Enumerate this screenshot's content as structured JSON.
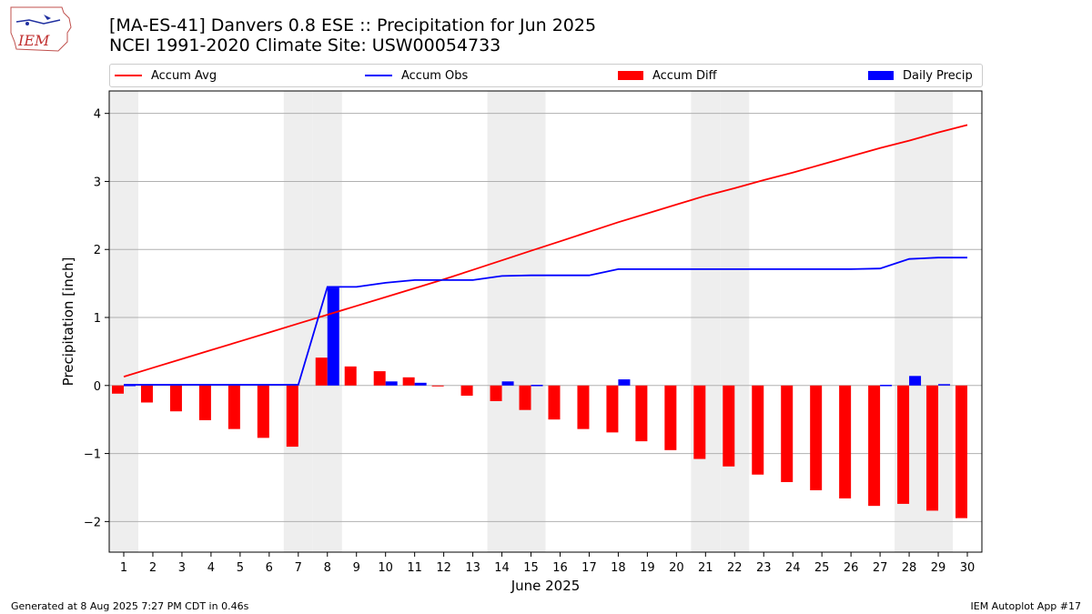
{
  "header": {
    "title_line1": "[MA-ES-41] Danvers 0.8 ESE :: Precipitation for Jun 2025",
    "title_line2": "NCEI 1991-2020 Climate Site: USW00054733",
    "logo_text": "IEM"
  },
  "footer": {
    "generated": "Generated at 8 Aug 2025 7:27 PM CDT in 0.46s",
    "app": "IEM Autoplot App #17"
  },
  "colors": {
    "accum_avg": "#ff0000",
    "accum_obs": "#0000ff",
    "accum_diff": "#ff0000",
    "daily_precip": "#0000ff",
    "weekend_shade": "#eeeeee",
    "grid": "#b0b0b0"
  },
  "chart_data": {
    "type": "bar",
    "xlabel": "June 2025",
    "ylabel": "Precipitation [inch]",
    "ylim": [
      -2.45,
      4.33
    ],
    "yticks": [
      -2,
      -1,
      0,
      1,
      2,
      3,
      4
    ],
    "ytick_labels": [
      "−2",
      "−1",
      "0",
      "1",
      "2",
      "3",
      "4"
    ],
    "grid": "horizontal",
    "legend_placement": "top",
    "x": [
      1,
      2,
      3,
      4,
      5,
      6,
      7,
      8,
      9,
      10,
      11,
      12,
      13,
      14,
      15,
      16,
      17,
      18,
      19,
      20,
      21,
      22,
      23,
      24,
      25,
      26,
      27,
      28,
      29,
      30
    ],
    "weekend_days": [
      1,
      7,
      8,
      14,
      15,
      21,
      22,
      28,
      29
    ],
    "legend": [
      "Accum Avg",
      "Accum Obs",
      "Accum Diff",
      "Daily Precip"
    ],
    "series": [
      {
        "name": "Accum Avg",
        "kind": "line",
        "values": [
          0.13,
          0.26,
          0.39,
          0.52,
          0.65,
          0.78,
          0.91,
          1.04,
          1.17,
          1.3,
          1.43,
          1.56,
          1.7,
          1.84,
          1.98,
          2.12,
          2.26,
          2.4,
          2.53,
          2.66,
          2.79,
          2.9,
          3.02,
          3.13,
          3.25,
          3.37,
          3.49,
          3.6,
          3.72,
          3.83
        ]
      },
      {
        "name": "Accum Obs",
        "kind": "line",
        "values": [
          0.01,
          0.01,
          0.01,
          0.01,
          0.01,
          0.01,
          0.01,
          1.45,
          1.45,
          1.51,
          1.55,
          1.55,
          1.55,
          1.61,
          1.62,
          1.62,
          1.62,
          1.71,
          1.71,
          1.71,
          1.71,
          1.71,
          1.71,
          1.71,
          1.71,
          1.71,
          1.72,
          1.86,
          1.88,
          1.88
        ]
      },
      {
        "name": "Accum Diff",
        "kind": "bar",
        "values": [
          -0.12,
          -0.25,
          -0.38,
          -0.51,
          -0.64,
          -0.77,
          -0.9,
          0.41,
          0.28,
          0.21,
          0.12,
          -0.01,
          -0.15,
          -0.23,
          -0.36,
          -0.5,
          -0.64,
          -0.69,
          -0.82,
          -0.95,
          -1.08,
          -1.19,
          -1.31,
          -1.42,
          -1.54,
          -1.66,
          -1.77,
          -1.74,
          -1.84,
          -1.95
        ]
      },
      {
        "name": "Daily Precip",
        "kind": "bar",
        "values": [
          0.01,
          0,
          0,
          0,
          0,
          0,
          0,
          1.44,
          0,
          0.06,
          0.04,
          0,
          0,
          0.06,
          0.01,
          0,
          0,
          0.09,
          0,
          0,
          0,
          0,
          0,
          0,
          0,
          0,
          0.01,
          0.14,
          0.02,
          0
        ]
      }
    ]
  }
}
